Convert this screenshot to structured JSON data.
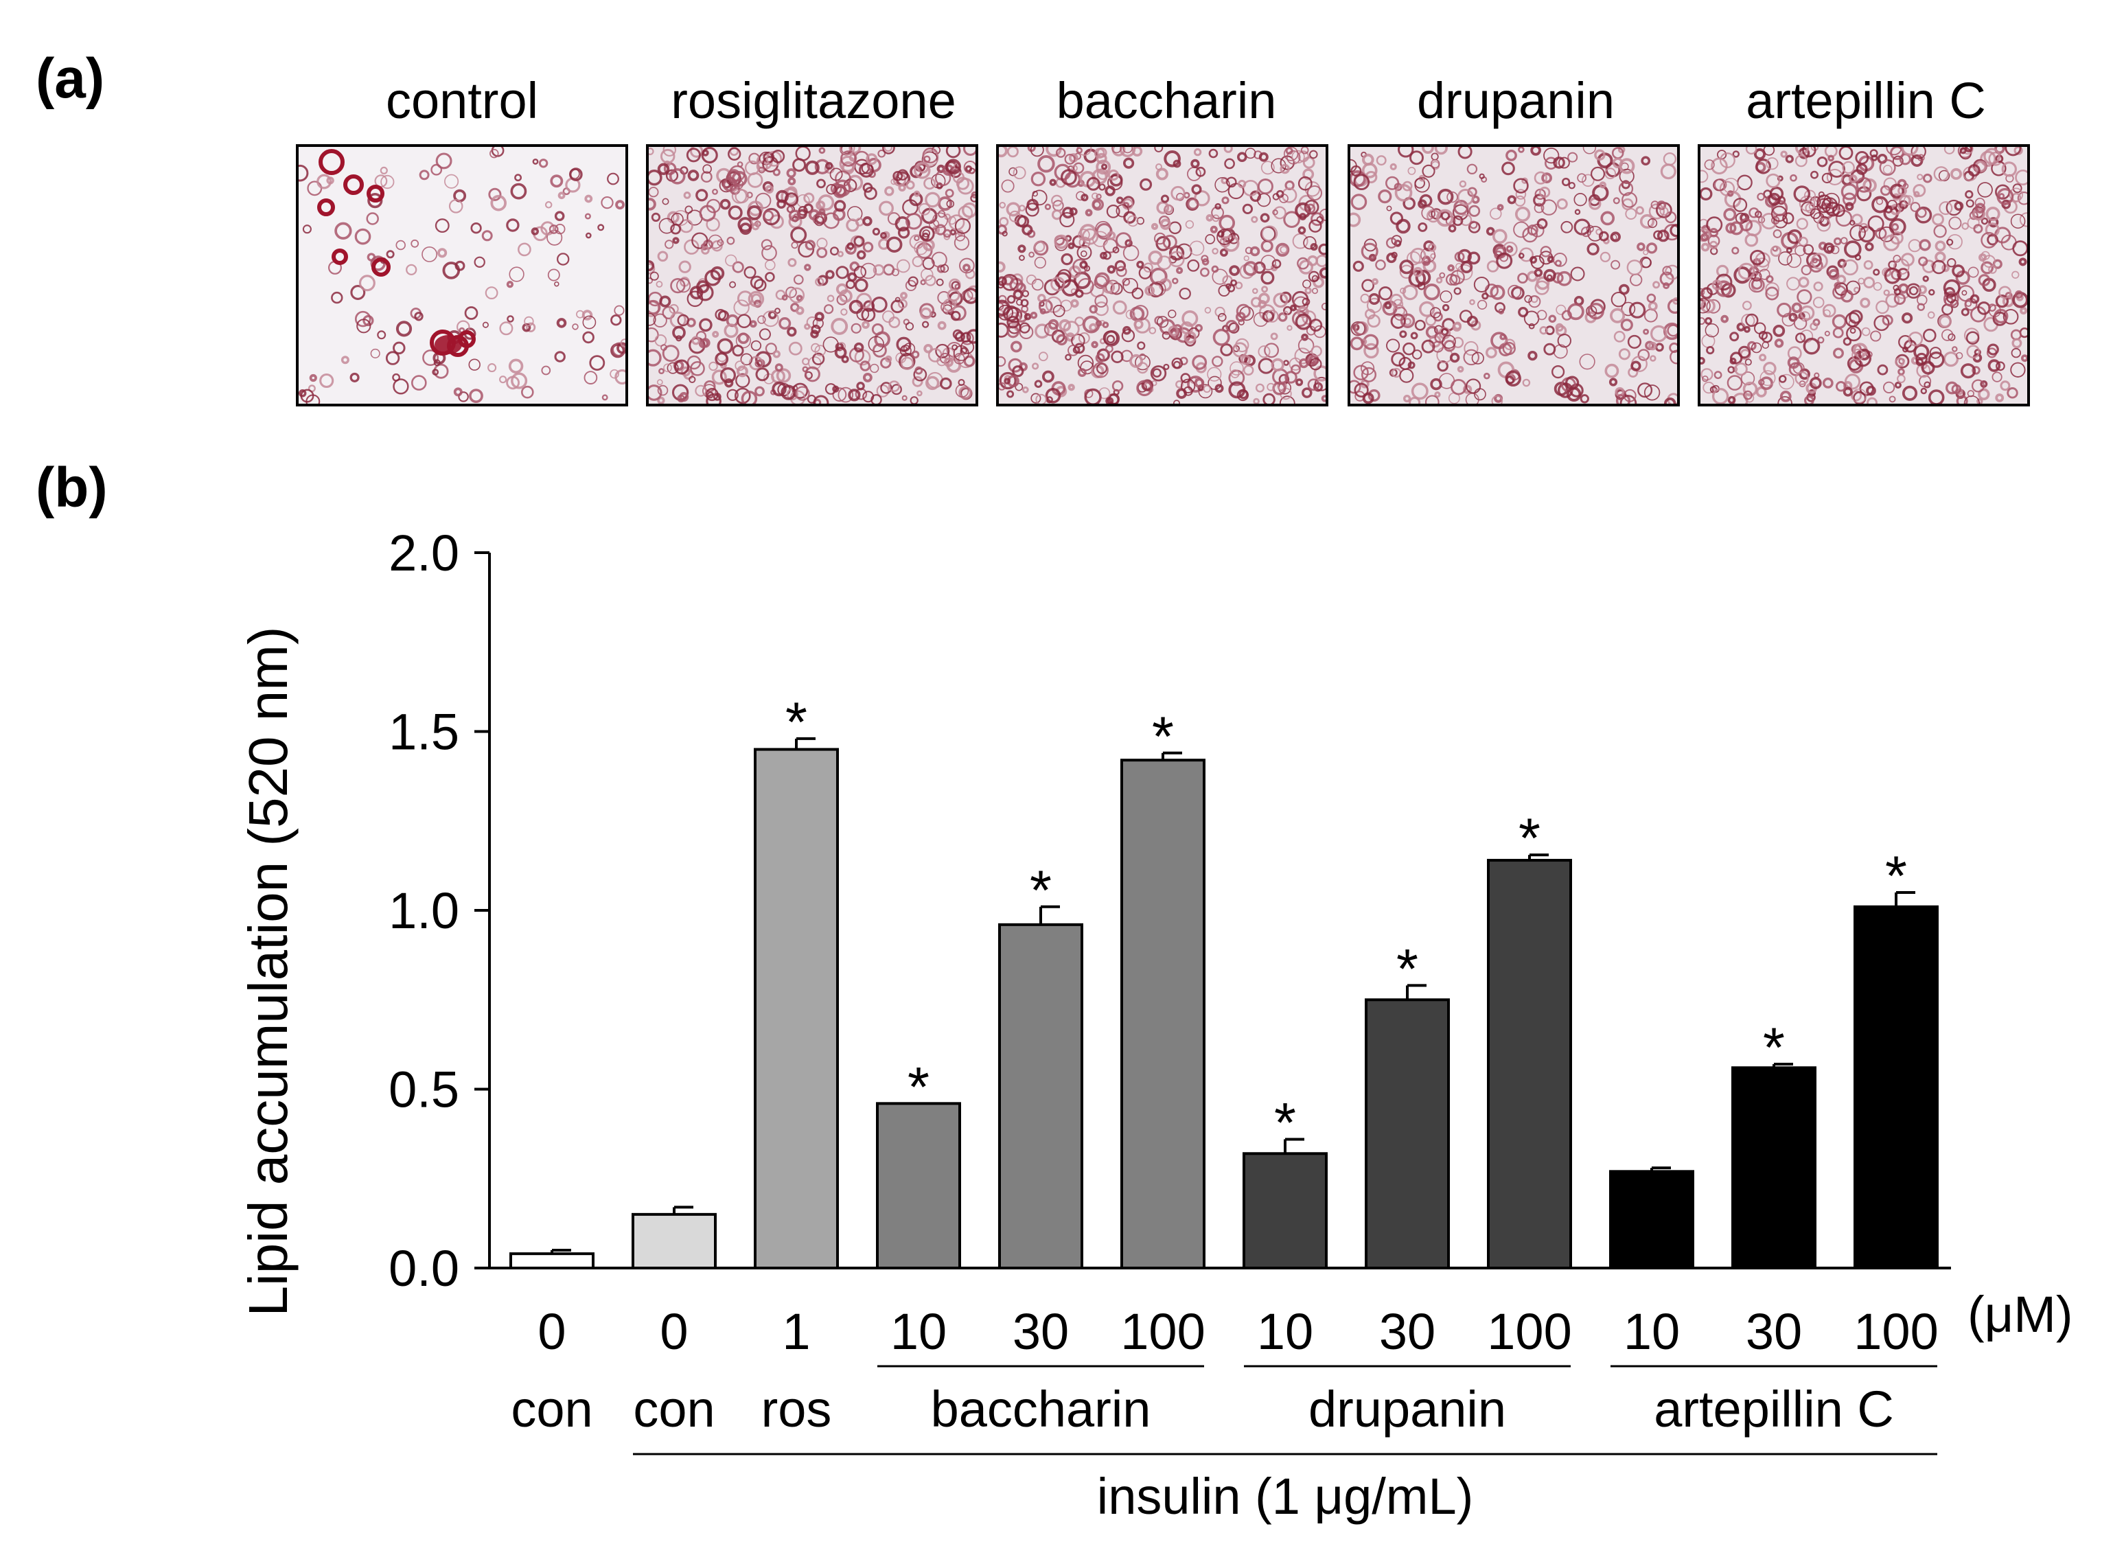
{
  "panels": {
    "a_label": "(a)",
    "b_label": "(b)"
  },
  "micrographs": [
    {
      "title": "control",
      "stain": "sparse"
    },
    {
      "title": "rosiglitazone",
      "stain": "dense"
    },
    {
      "title": "baccharin",
      "stain": "dense"
    },
    {
      "title": "drupanin",
      "stain": "medium"
    },
    {
      "title": "artepillin C",
      "stain": "dense"
    }
  ],
  "chart_data": {
    "type": "bar",
    "ylabel": "Lipid accumulation  (520 nm)",
    "ylim": [
      0,
      2.0
    ],
    "yticks": [
      0.0,
      0.5,
      1.0,
      1.5,
      2.0
    ],
    "ytick_labels": [
      "0.0",
      "0.5",
      "1.0",
      "1.5",
      "2.0"
    ],
    "x_unit": "(μM)",
    "insulin_label": "insulin (1 μg/mL)",
    "bars": [
      {
        "dose": "0",
        "value": 0.04,
        "error": 0.01,
        "color": "#ffffff",
        "sig": ""
      },
      {
        "dose": "0",
        "value": 0.15,
        "error": 0.02,
        "color": "#d9d9d9",
        "sig": ""
      },
      {
        "dose": "1",
        "value": 1.45,
        "error": 0.03,
        "color": "#a6a6a6",
        "sig": "*"
      },
      {
        "dose": "10",
        "value": 0.46,
        "error": 0.0,
        "color": "#808080",
        "sig": "*"
      },
      {
        "dose": "30",
        "value": 0.96,
        "error": 0.05,
        "color": "#808080",
        "sig": "*"
      },
      {
        "dose": "100",
        "value": 1.42,
        "error": 0.02,
        "color": "#808080",
        "sig": "*"
      },
      {
        "dose": "10",
        "value": 0.32,
        "error": 0.04,
        "color": "#404040",
        "sig": "*"
      },
      {
        "dose": "30",
        "value": 0.75,
        "error": 0.04,
        "color": "#404040",
        "sig": "*"
      },
      {
        "dose": "100",
        "value": 1.14,
        "error": 0.015,
        "color": "#404040",
        "sig": "*"
      },
      {
        "dose": "10",
        "value": 0.27,
        "error": 0.01,
        "color": "#000000",
        "sig": ""
      },
      {
        "dose": "30",
        "value": 0.56,
        "error": 0.01,
        "color": "#000000",
        "sig": "*"
      },
      {
        "dose": "100",
        "value": 1.01,
        "error": 0.04,
        "color": "#000000",
        "sig": "*"
      }
    ],
    "groups": [
      {
        "label": "con",
        "bars": [
          0
        ]
      },
      {
        "label": "con",
        "bars": [
          1
        ]
      },
      {
        "label": "ros",
        "bars": [
          2
        ]
      },
      {
        "label": "baccharin",
        "bars": [
          3,
          4,
          5
        ],
        "underline": true
      },
      {
        "label": "drupanin",
        "bars": [
          6,
          7,
          8
        ],
        "underline": true
      },
      {
        "label": "artepillin C",
        "bars": [
          9,
          10,
          11
        ],
        "underline": true
      }
    ],
    "insulin_span": [
      1,
      11
    ]
  }
}
